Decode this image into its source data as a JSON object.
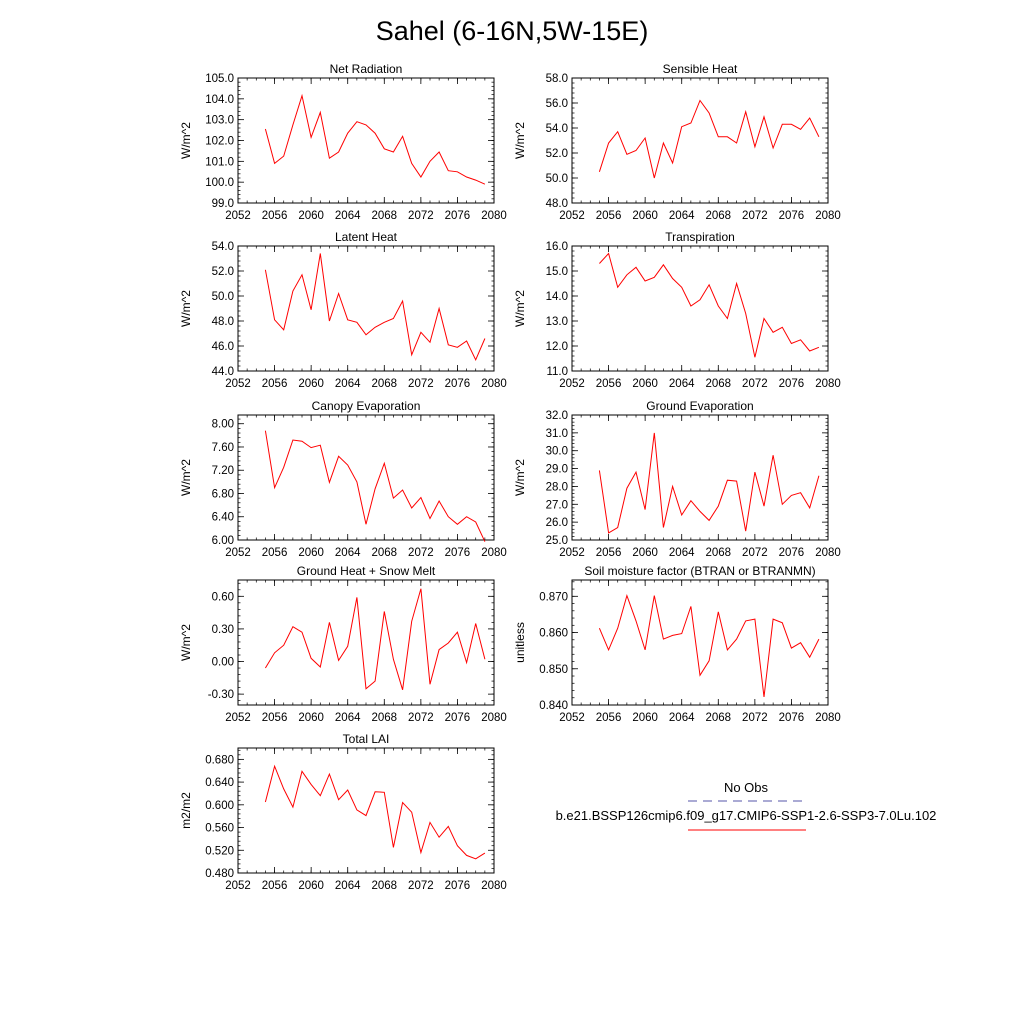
{
  "title": "Sahel (6-16N,5W-15E)",
  "legend": {
    "obs_label": "No Obs",
    "obs_color": "#5555aa",
    "model_label": "b.e21.BSSP126cmip6.f09_g17.CMIP6-SSP1-2.6-SSP3-7.0Lu.102",
    "model_color": "#ff0000"
  },
  "chart_data": [
    {
      "type": "line",
      "title": "Net Radiation",
      "ylabel": "W/m^2",
      "xlim": [
        2052,
        2080
      ],
      "ylim": [
        99.0,
        105.0
      ],
      "xticks": [
        "2052",
        "2056",
        "2060",
        "2064",
        "2068",
        "2072",
        "2076",
        "2080"
      ],
      "yticks": [
        "99.0",
        "100.0",
        "101.0",
        "102.0",
        "103.0",
        "104.0",
        "105.0"
      ],
      "ytick_values": [
        99,
        100,
        101,
        102,
        103,
        104,
        105
      ],
      "x": [
        2055,
        2056,
        2057,
        2058,
        2059,
        2060,
        2061,
        2062,
        2063,
        2064,
        2065,
        2066,
        2067,
        2068,
        2069,
        2070,
        2071,
        2072,
        2073,
        2074,
        2075,
        2076,
        2077,
        2078,
        2079
      ],
      "series": [
        {
          "values": [
            102.55,
            100.9,
            101.25,
            102.75,
            104.15,
            102.15,
            103.35,
            101.15,
            101.45,
            102.35,
            102.9,
            102.75,
            102.35,
            101.6,
            101.45,
            102.2,
            100.9,
            100.25,
            101.0,
            101.45,
            100.55,
            100.5,
            100.25,
            100.1,
            99.9
          ]
        }
      ]
    },
    {
      "type": "line",
      "title": "Sensible Heat",
      "ylabel": "W/m^2",
      "xlim": [
        2052,
        2080
      ],
      "ylim": [
        48.0,
        58.0
      ],
      "xticks": [
        "2052",
        "2056",
        "2060",
        "2064",
        "2068",
        "2072",
        "2076",
        "2080"
      ],
      "yticks": [
        "48.0",
        "50.0",
        "52.0",
        "54.0",
        "56.0",
        "58.0"
      ],
      "ytick_values": [
        48,
        50,
        52,
        54,
        56,
        58
      ],
      "x": [
        2055,
        2056,
        2057,
        2058,
        2059,
        2060,
        2061,
        2062,
        2063,
        2064,
        2065,
        2066,
        2067,
        2068,
        2069,
        2070,
        2071,
        2072,
        2073,
        2074,
        2075,
        2076,
        2077,
        2078,
        2079
      ],
      "series": [
        {
          "values": [
            50.5,
            52.8,
            53.7,
            51.9,
            52.2,
            53.2,
            50.0,
            52.8,
            51.2,
            54.1,
            54.4,
            56.2,
            55.2,
            53.3,
            53.3,
            52.8,
            55.3,
            52.5,
            54.9,
            52.4,
            54.3,
            54.3,
            53.9,
            54.8,
            53.3
          ]
        }
      ]
    },
    {
      "type": "line",
      "title": "Latent Heat",
      "ylabel": "W/m^2",
      "xlim": [
        2052,
        2080
      ],
      "ylim": [
        44.0,
        54.0
      ],
      "xticks": [
        "2052",
        "2056",
        "2060",
        "2064",
        "2068",
        "2072",
        "2076",
        "2080"
      ],
      "yticks": [
        "44.0",
        "46.0",
        "48.0",
        "50.0",
        "52.0",
        "54.0"
      ],
      "ytick_values": [
        44,
        46,
        48,
        50,
        52,
        54
      ],
      "x": [
        2055,
        2056,
        2057,
        2058,
        2059,
        2060,
        2061,
        2062,
        2063,
        2064,
        2065,
        2066,
        2067,
        2068,
        2069,
        2070,
        2071,
        2072,
        2073,
        2074,
        2075,
        2076,
        2077,
        2078,
        2079
      ],
      "series": [
        {
          "values": [
            52.1,
            48.1,
            47.3,
            50.4,
            51.7,
            48.9,
            53.4,
            48.0,
            50.2,
            48.1,
            47.9,
            46.9,
            47.5,
            47.9,
            48.2,
            49.6,
            45.3,
            47.1,
            46.3,
            49.0,
            46.1,
            45.9,
            46.4,
            44.9,
            46.6
          ]
        }
      ]
    },
    {
      "type": "line",
      "title": "Transpiration",
      "ylabel": "W/m^2",
      "xlim": [
        2052,
        2080
      ],
      "ylim": [
        11.0,
        16.0
      ],
      "xticks": [
        "2052",
        "2056",
        "2060",
        "2064",
        "2068",
        "2072",
        "2076",
        "2080"
      ],
      "yticks": [
        "11.0",
        "12.0",
        "13.0",
        "14.0",
        "15.0",
        "16.0"
      ],
      "ytick_values": [
        11,
        12,
        13,
        14,
        15,
        16
      ],
      "x": [
        2055,
        2056,
        2057,
        2058,
        2059,
        2060,
        2061,
        2062,
        2063,
        2064,
        2065,
        2066,
        2067,
        2068,
        2069,
        2070,
        2071,
        2072,
        2073,
        2074,
        2075,
        2076,
        2077,
        2078,
        2079
      ],
      "series": [
        {
          "values": [
            15.3,
            15.7,
            14.35,
            14.85,
            15.15,
            14.6,
            14.75,
            15.25,
            14.7,
            14.35,
            13.6,
            13.85,
            14.45,
            13.6,
            13.1,
            14.5,
            13.3,
            11.55,
            13.1,
            12.55,
            12.75,
            12.1,
            12.25,
            11.8,
            11.95
          ]
        }
      ]
    },
    {
      "type": "line",
      "title": "Canopy Evaporation",
      "ylabel": "W/m^2",
      "xlim": [
        2052,
        2080
      ],
      "ylim": [
        6.0,
        8.15
      ],
      "xticks": [
        "2052",
        "2056",
        "2060",
        "2064",
        "2068",
        "2072",
        "2076",
        "2080"
      ],
      "yticks": [
        "6.00",
        "6.40",
        "6.80",
        "7.20",
        "7.60",
        "8.00"
      ],
      "ytick_values": [
        6.0,
        6.4,
        6.8,
        7.2,
        7.6,
        8.0
      ],
      "x": [
        2055,
        2056,
        2057,
        2058,
        2059,
        2060,
        2061,
        2062,
        2063,
        2064,
        2065,
        2066,
        2067,
        2068,
        2069,
        2070,
        2071,
        2072,
        2073,
        2074,
        2075,
        2076,
        2077,
        2078,
        2079
      ],
      "series": [
        {
          "values": [
            7.88,
            6.9,
            7.25,
            7.72,
            7.7,
            7.59,
            7.63,
            6.99,
            7.44,
            7.29,
            7.0,
            6.27,
            6.88,
            7.32,
            6.72,
            6.86,
            6.55,
            6.73,
            6.37,
            6.67,
            6.4,
            6.27,
            6.4,
            6.31,
            5.97
          ]
        }
      ]
    },
    {
      "type": "line",
      "title": "Ground Evaporation",
      "ylabel": "W/m^2",
      "xlim": [
        2052,
        2080
      ],
      "ylim": [
        25.0,
        32.0
      ],
      "xticks": [
        "2052",
        "2056",
        "2060",
        "2064",
        "2068",
        "2072",
        "2076",
        "2080"
      ],
      "yticks": [
        "25.0",
        "26.0",
        "27.0",
        "28.0",
        "29.0",
        "30.0",
        "31.0",
        "32.0"
      ],
      "ytick_values": [
        25,
        26,
        27,
        28,
        29,
        30,
        31,
        32
      ],
      "x": [
        2055,
        2056,
        2057,
        2058,
        2059,
        2060,
        2061,
        2062,
        2063,
        2064,
        2065,
        2066,
        2067,
        2068,
        2069,
        2070,
        2071,
        2072,
        2073,
        2074,
        2075,
        2076,
        2077,
        2078,
        2079
      ],
      "series": [
        {
          "values": [
            28.9,
            25.4,
            25.7,
            27.9,
            28.8,
            26.7,
            31.0,
            25.7,
            28.0,
            26.4,
            27.2,
            26.6,
            26.1,
            26.9,
            28.35,
            28.3,
            25.5,
            28.8,
            26.9,
            29.75,
            27.0,
            27.5,
            27.65,
            26.8,
            28.6
          ]
        }
      ]
    },
    {
      "type": "line",
      "title": "Ground Heat + Snow Melt",
      "ylabel": "W/m^2",
      "xlim": [
        2052,
        2080
      ],
      "ylim": [
        -0.4,
        0.75
      ],
      "xticks": [
        "2052",
        "2056",
        "2060",
        "2064",
        "2068",
        "2072",
        "2076",
        "2080"
      ],
      "yticks": [
        "-0.30",
        "0.00",
        "0.30",
        "0.60"
      ],
      "ytick_values": [
        -0.3,
        0.0,
        0.3,
        0.6
      ],
      "x": [
        2055,
        2056,
        2057,
        2058,
        2059,
        2060,
        2061,
        2062,
        2063,
        2064,
        2065,
        2066,
        2067,
        2068,
        2069,
        2070,
        2071,
        2072,
        2073,
        2074,
        2075,
        2076,
        2077,
        2078,
        2079
      ],
      "series": [
        {
          "values": [
            -0.06,
            0.08,
            0.15,
            0.32,
            0.27,
            0.03,
            -0.05,
            0.36,
            0.01,
            0.14,
            0.59,
            -0.25,
            -0.18,
            0.46,
            0.02,
            -0.26,
            0.37,
            0.67,
            -0.21,
            0.11,
            0.17,
            0.27,
            -0.01,
            0.35,
            0.02
          ]
        }
      ]
    },
    {
      "type": "line",
      "title": "Soil moisture factor (BTRAN or BTRANMN)",
      "ylabel": "unitless",
      "xlim": [
        2052,
        2080
      ],
      "ylim": [
        0.84,
        0.8745
      ],
      "xticks": [
        "2052",
        "2056",
        "2060",
        "2064",
        "2068",
        "2072",
        "2076",
        "2080"
      ],
      "yticks": [
        "0.840",
        "0.850",
        "0.860",
        "0.870"
      ],
      "ytick_values": [
        0.84,
        0.85,
        0.86,
        0.87
      ],
      "x": [
        2055,
        2056,
        2057,
        2058,
        2059,
        2060,
        2061,
        2062,
        2063,
        2064,
        2065,
        2066,
        2067,
        2068,
        2069,
        2070,
        2071,
        2072,
        2073,
        2074,
        2075,
        2076,
        2077,
        2078,
        2079
      ],
      "series": [
        {
          "values": [
            0.8612,
            0.8552,
            0.8612,
            0.8702,
            0.8632,
            0.8552,
            0.8702,
            0.8582,
            0.8592,
            0.8597,
            0.8672,
            0.8482,
            0.8522,
            0.8657,
            0.8552,
            0.8582,
            0.8632,
            0.8637,
            0.8422,
            0.8637,
            0.8627,
            0.8557,
            0.8572,
            0.8532,
            0.8582
          ]
        }
      ]
    },
    {
      "type": "line",
      "title": "Total LAI",
      "ylabel": "m2/m2",
      "xlim": [
        2052,
        2080
      ],
      "ylim": [
        0.48,
        0.7
      ],
      "xticks": [
        "2052",
        "2056",
        "2060",
        "2064",
        "2068",
        "2072",
        "2076",
        "2080"
      ],
      "yticks": [
        "0.480",
        "0.520",
        "0.560",
        "0.600",
        "0.640",
        "0.680"
      ],
      "ytick_values": [
        0.48,
        0.52,
        0.56,
        0.6,
        0.64,
        0.68
      ],
      "x": [
        2055,
        2056,
        2057,
        2058,
        2059,
        2060,
        2061,
        2062,
        2063,
        2064,
        2065,
        2066,
        2067,
        2068,
        2069,
        2070,
        2071,
        2072,
        2073,
        2074,
        2075,
        2076,
        2077,
        2078,
        2079
      ],
      "series": [
        {
          "values": [
            0.605,
            0.668,
            0.628,
            0.596,
            0.659,
            0.636,
            0.616,
            0.654,
            0.609,
            0.626,
            0.591,
            0.581,
            0.623,
            0.622,
            0.525,
            0.604,
            0.587,
            0.516,
            0.569,
            0.543,
            0.562,
            0.528,
            0.511,
            0.505,
            0.515
          ]
        }
      ]
    }
  ]
}
